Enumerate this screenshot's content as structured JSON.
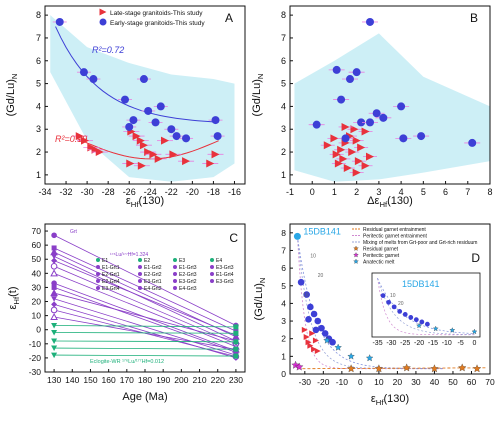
{
  "colors": {
    "red": "#e8323c",
    "blue": "#3d3fd6",
    "cyan_band": "#cdeff6",
    "purple": "#8a3fc8",
    "green": "#1db07a",
    "orange": "#e07a1f",
    "dark_brown": "#6b3a10",
    "magenta": "#d62fd1",
    "sky": "#2aa7e6"
  },
  "chart_data": [
    {
      "id": "A",
      "type": "scatter",
      "panel_label": "A",
      "xlabel_main": "ε",
      "xlabel_sub": "Hf",
      "xlabel_tail": "(130)",
      "ylabel_main": "(Gd/Lu)",
      "ylabel_sub": "N",
      "xlim": [
        -34,
        -15
      ],
      "ylim": [
        0.6,
        8.4
      ],
      "xticks": [
        -34,
        -32,
        -30,
        -28,
        -26,
        -24,
        -22,
        -20,
        -18,
        -16
      ],
      "yticks": [
        1,
        2,
        3,
        4,
        5,
        6,
        7,
        8
      ],
      "legend": [
        "Late-stage granitoids-This study",
        "Early-stage granitoids-This study"
      ],
      "r2_blue": "R²=0.72",
      "r2_red": "R²=0.19",
      "series": [
        {
          "name": "Early-stage granitoids-This study",
          "marker": "circle",
          "x": [
            -32.6,
            -30.3,
            -29.4,
            -26.4,
            -25.6,
            -24.6,
            -24.2,
            -23.5,
            -23.0,
            -22.0,
            -21.5,
            -20.6,
            -17.8,
            -17.6,
            -26.0
          ],
          "y": [
            7.7,
            5.5,
            5.2,
            4.3,
            3.4,
            5.2,
            3.8,
            3.3,
            4.0,
            3.0,
            2.7,
            2.6,
            3.4,
            2.7,
            3.1
          ]
        },
        {
          "name": "Late-stage granitoids-This study",
          "marker": "triangle-right",
          "x": [
            -30.7,
            -30.2,
            -29.6,
            -29.2,
            -28.8,
            -25.8,
            -25.3,
            -24.9,
            -24.6,
            -24.2,
            -23.7,
            -23.2,
            -22.6,
            -21.8,
            -20.6,
            -18.3,
            -17.8,
            -25.9,
            -24.8
          ],
          "y": [
            2.7,
            2.5,
            2.2,
            2.1,
            2.0,
            2.9,
            2.7,
            2.5,
            2.3,
            2.0,
            1.9,
            1.7,
            2.5,
            1.9,
            1.6,
            1.5,
            1.9,
            1.5,
            1.4
          ]
        }
      ]
    },
    {
      "id": "B",
      "type": "scatter",
      "panel_label": "B",
      "xlabel_main": "Δε",
      "xlabel_sub": "Hf",
      "xlabel_tail": "(130)",
      "ylabel_main": "(Gd/Lu)",
      "ylabel_sub": "N",
      "xlim": [
        -1,
        8
      ],
      "ylim": [
        0.6,
        8.4
      ],
      "xticks": [
        -1,
        0,
        1,
        2,
        3,
        4,
        5,
        6,
        7,
        8
      ],
      "yticks": [
        1,
        2,
        3,
        4,
        5,
        6,
        7,
        8
      ],
      "series": [
        {
          "name": "Early-stage",
          "marker": "circle",
          "x": [
            0.2,
            1.1,
            1.3,
            1.5,
            1.7,
            2.0,
            2.2,
            2.6,
            2.9,
            3.2,
            4.0,
            4.1,
            4.9,
            7.2,
            2.6
          ],
          "y": [
            3.2,
            5.6,
            4.3,
            2.6,
            5.2,
            5.5,
            3.3,
            7.7,
            3.7,
            3.5,
            4.0,
            2.6,
            2.7,
            2.4,
            3.3
          ]
        },
        {
          "name": "Late-stage",
          "marker": "triangle-right",
          "x": [
            0.7,
            1.0,
            1.3,
            1.5,
            1.7,
            2.0,
            2.2,
            2.4,
            1.1,
            1.4,
            1.8,
            2.1,
            2.6,
            1.2,
            1.6,
            2.0,
            2.4,
            1.9,
            1.5
          ],
          "y": [
            2.3,
            2.6,
            2.1,
            2.4,
            2.7,
            2.5,
            2.2,
            2.9,
            1.9,
            1.7,
            2.0,
            1.6,
            1.8,
            1.5,
            1.3,
            1.1,
            1.4,
            3.0,
            3.1
          ]
        }
      ]
    },
    {
      "id": "C",
      "type": "line",
      "panel_label": "C",
      "xlabel_main": "Age (Ma)",
      "ylabel_main": "ε",
      "ylabel_sub": "Hf",
      "ylabel_tail": "(t)",
      "xlim": [
        125,
        235
      ],
      "ylim": [
        -30,
        75
      ],
      "xticks": [
        130,
        140,
        150,
        160,
        170,
        180,
        190,
        200,
        210,
        220,
        230
      ],
      "yticks": [
        -30,
        -20,
        -10,
        0,
        10,
        20,
        30,
        40,
        50,
        60,
        70
      ],
      "legend": [
        "E1",
        "E1-Grt1",
        "E2-Grt1",
        "E2-Grt4",
        "E3-Grt4",
        "E2",
        "E1-Grt2",
        "E2-Grt2",
        "E3-Grt1",
        "E4-Grt2",
        "E3",
        "E1-Grt3",
        "E2-Grt3",
        "E3-Grt2",
        "E4-Grt3",
        "E4",
        "E3-Grt3",
        "E1-Grt4",
        "E3-Grt3"
      ],
      "annotation_grt": "Grt",
      "annotation_grt_ratio": "¹⁷⁶Lu/¹⁷⁷Hf=1.324",
      "annotation_wr": "Eclogite-WR ¹⁷⁶Lu/¹⁷⁷Hf=0.012",
      "grt_lines": [
        {
          "start": 67,
          "end": 3
        },
        {
          "start": 58,
          "end": -1
        },
        {
          "start": 55,
          "end": -5
        },
        {
          "start": 52,
          "end": -8
        },
        {
          "start": 49,
          "end": -4
        },
        {
          "start": 45,
          "end": -10
        },
        {
          "start": 40,
          "end": -12
        },
        {
          "start": 33,
          "end": -15
        },
        {
          "start": 30,
          "end": -16
        },
        {
          "start": 26,
          "end": -8
        },
        {
          "start": 22,
          "end": -18
        },
        {
          "start": 18,
          "end": -20
        },
        {
          "start": 14,
          "end": -19
        },
        {
          "start": 9,
          "end": -14
        }
      ],
      "wr_lines": [
        {
          "start": 3,
          "end": 2
        },
        {
          "start": -2,
          "end": -2.5
        },
        {
          "start": -8,
          "end": -8.6
        },
        {
          "start": -13,
          "end": -13.8
        },
        {
          "start": -18,
          "end": -18.7
        }
      ]
    },
    {
      "id": "D",
      "type": "line",
      "panel_label": "D",
      "xlabel_main": "ε",
      "xlabel_sub": "Hf",
      "xlabel_tail": "(130)",
      "ylabel_main": "(Gd/Lu)",
      "ylabel_sub": "N",
      "xlim": [
        -38,
        70
      ],
      "ylim": [
        0,
        8.5
      ],
      "xticks": [
        -30,
        -20,
        -10,
        0,
        10,
        20,
        30,
        40,
        50,
        60,
        70
      ],
      "yticks": [
        0,
        1,
        2,
        3,
        4,
        5,
        6,
        7,
        8
      ],
      "sample_label": "15DB141",
      "legend": [
        "Residual garnet entrainment",
        "Peritectic garnet entrainment",
        "Mixing of melts from Grt-poor and Grt-rich residuum",
        "Residual garnet",
        "Peritectic garnet",
        "Anatectic melt"
      ],
      "curve_labels": [
        "10",
        "20",
        "10"
      ],
      "inset": {
        "sample_label": "15DB141",
        "xticks": [
          -35,
          -30,
          -25,
          -20,
          -15,
          -10,
          -5,
          0
        ],
        "curve_labels": [
          "10",
          "20"
        ]
      }
    }
  ]
}
